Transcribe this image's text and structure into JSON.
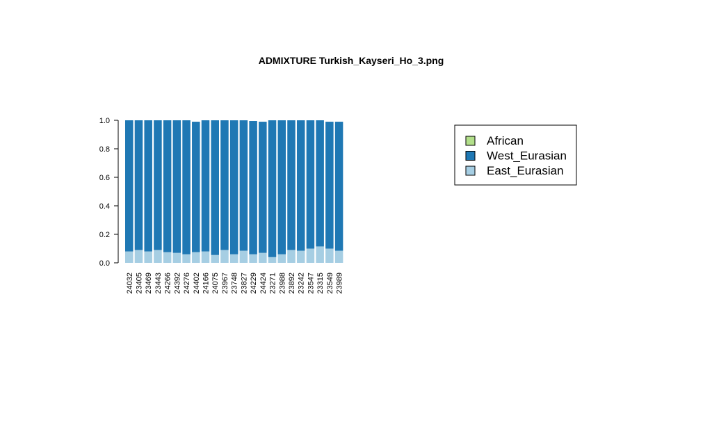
{
  "chart_data": {
    "type": "bar",
    "stacked": true,
    "title": "ADMIXTURE Turkish_Kayseri_Ho_3.png",
    "xlabel": "",
    "ylabel": "",
    "ylim": [
      0,
      1.0
    ],
    "yticks": [
      "0.0",
      "0.2",
      "0.4",
      "0.6",
      "0.8",
      "1.0"
    ],
    "categories": [
      "24032",
      "23405",
      "23469",
      "23443",
      "24266",
      "24392",
      "24276",
      "24402",
      "24166",
      "24075",
      "23967",
      "23748",
      "23827",
      "24229",
      "24424",
      "23271",
      "23988",
      "23892",
      "23242",
      "23547",
      "23315",
      "23549",
      "23989"
    ],
    "series": [
      {
        "name": "African",
        "color": "#b2df8a",
        "values": [
          0,
          0,
          0,
          0,
          0,
          0,
          0,
          0,
          0,
          0,
          0,
          0,
          0,
          0,
          0,
          0,
          0,
          0,
          0,
          0,
          0,
          0,
          0
        ]
      },
      {
        "name": "East_Eurasian",
        "color": "#a6cee3",
        "values": [
          0.08,
          0.09,
          0.08,
          0.09,
          0.075,
          0.07,
          0.06,
          0.075,
          0.08,
          0.055,
          0.09,
          0.06,
          0.085,
          0.06,
          0.07,
          0.04,
          0.06,
          0.09,
          0.085,
          0.1,
          0.115,
          0.1,
          0.085
        ]
      },
      {
        "name": "West_Eurasian",
        "color": "#1f78b4",
        "values": [
          0.92,
          0.91,
          0.92,
          0.91,
          0.925,
          0.93,
          0.94,
          0.915,
          0.92,
          0.945,
          0.91,
          0.94,
          0.915,
          0.935,
          0.92,
          0.96,
          0.94,
          0.91,
          0.915,
          0.9,
          0.885,
          0.89,
          0.905
        ]
      }
    ],
    "legend": {
      "position": "right",
      "entries": [
        {
          "label": "African",
          "color": "#b2df8a"
        },
        {
          "label": "West_Eurasian",
          "color": "#1f78b4"
        },
        {
          "label": "East_Eurasian",
          "color": "#a6cee3"
        }
      ]
    },
    "grid": false
  }
}
